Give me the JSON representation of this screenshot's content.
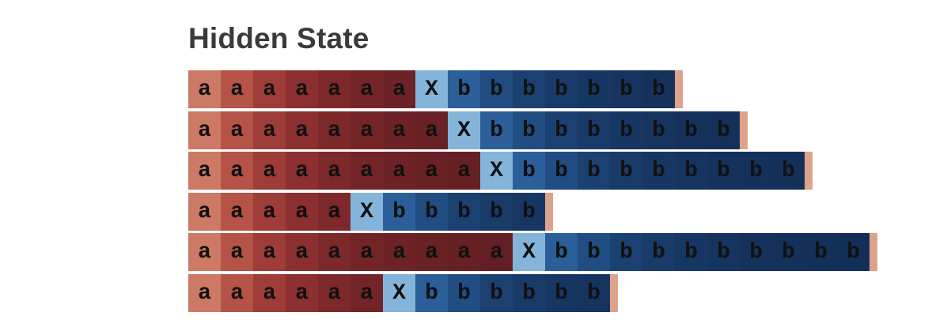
{
  "title": "Hidden State",
  "colors": {
    "a_ramp": [
      "#cc7a66",
      "#b45346",
      "#9e3c38",
      "#8b2f30",
      "#7d282b",
      "#732427",
      "#6c2226",
      "#682125",
      "#652024",
      "#631f23",
      "#611e22"
    ],
    "marker": "#84b4d9",
    "b_ramp": [
      "#2c5f9a",
      "#214d83",
      "#1b4173",
      "#183b69",
      "#163763",
      "#15345f",
      "#14325c",
      "#13315a",
      "#133059",
      "#122f58"
    ],
    "tail": "#dda28a"
  },
  "rows": [
    {
      "a": [
        "a",
        "a",
        "a",
        "a",
        "a",
        "a",
        "a"
      ],
      "marker": "X",
      "b": [
        "b",
        "b",
        "b",
        "b",
        "b",
        "b",
        "b"
      ]
    },
    {
      "a": [
        "a",
        "a",
        "a",
        "a",
        "a",
        "a",
        "a",
        "a"
      ],
      "marker": "X",
      "b": [
        "b",
        "b",
        "b",
        "b",
        "b",
        "b",
        "b",
        "b"
      ]
    },
    {
      "a": [
        "a",
        "a",
        "a",
        "a",
        "a",
        "a",
        "a",
        "a",
        "a"
      ],
      "marker": "X",
      "b": [
        "b",
        "b",
        "b",
        "b",
        "b",
        "b",
        "b",
        "b",
        "b"
      ]
    },
    {
      "a": [
        "a",
        "a",
        "a",
        "a",
        "a"
      ],
      "marker": "X",
      "b": [
        "b",
        "b",
        "b",
        "b",
        "b"
      ]
    },
    {
      "a": [
        "a",
        "a",
        "a",
        "a",
        "a",
        "a",
        "a",
        "a",
        "a",
        "a"
      ],
      "marker": "X",
      "b": [
        "b",
        "b",
        "b",
        "b",
        "b",
        "b",
        "b",
        "b",
        "b",
        "b"
      ]
    },
    {
      "a": [
        "a",
        "a",
        "a",
        "a",
        "a",
        "a"
      ],
      "marker": "X",
      "b": [
        "b",
        "b",
        "b",
        "b",
        "b",
        "b"
      ]
    }
  ]
}
